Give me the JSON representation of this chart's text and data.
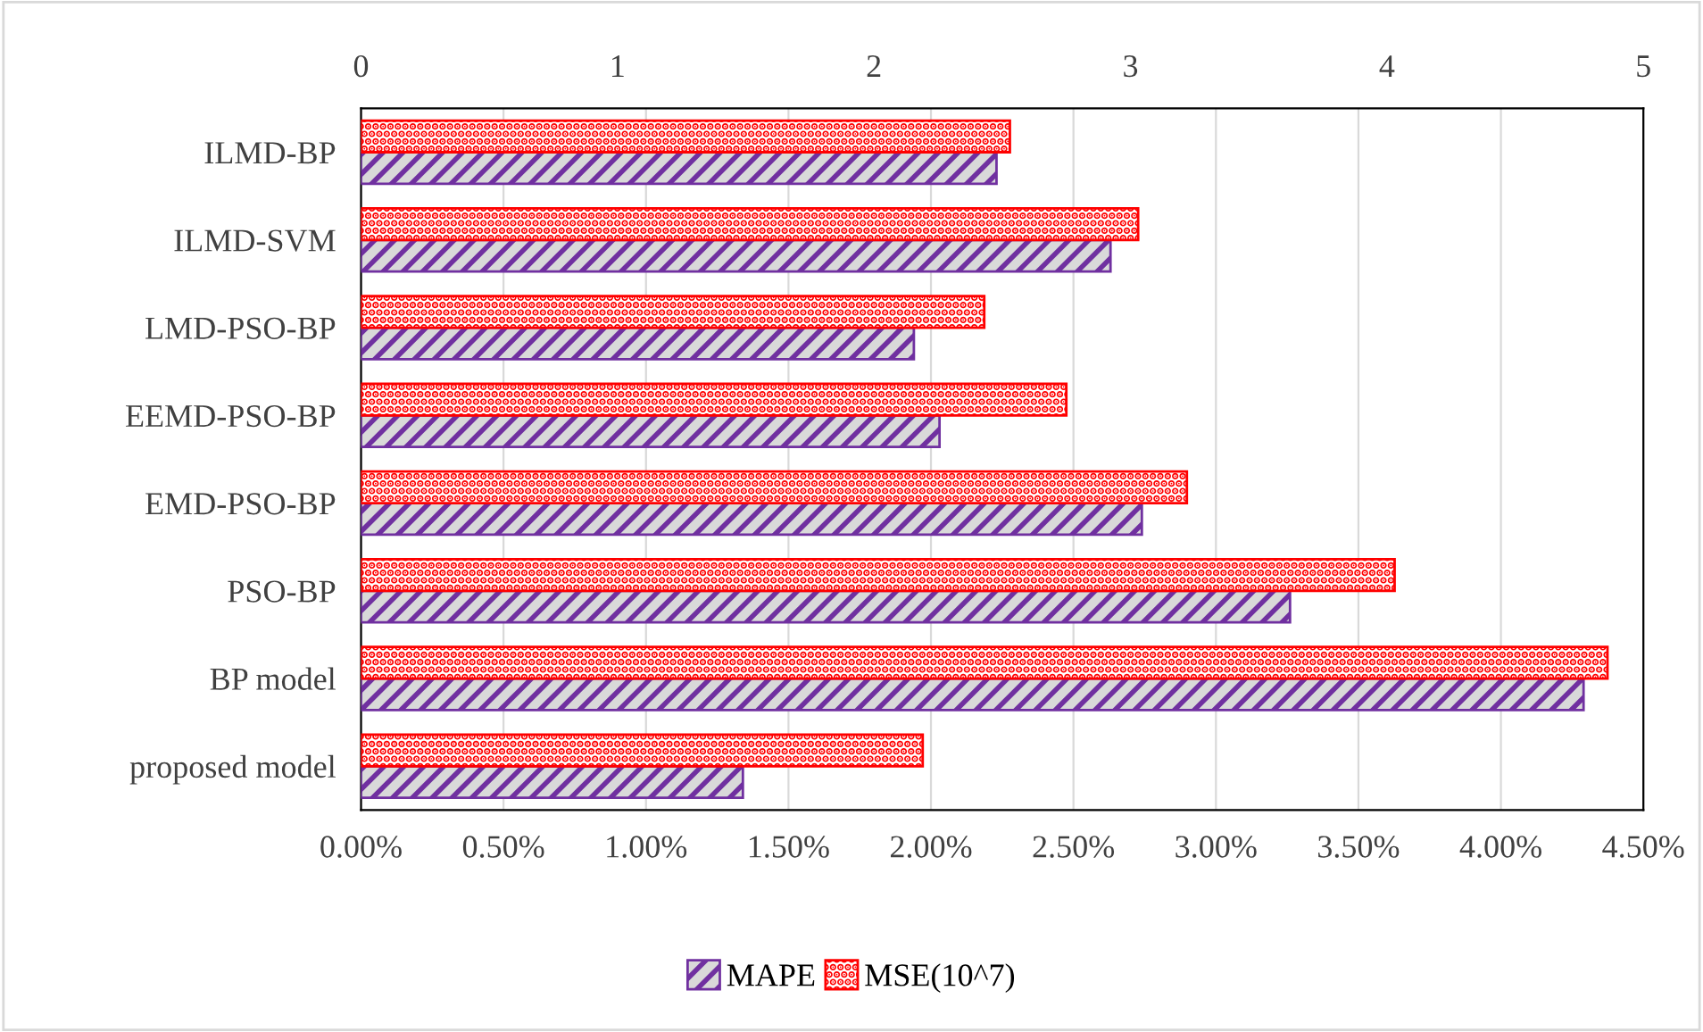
{
  "chart_data": {
    "type": "bar",
    "orientation": "horizontal",
    "categories": [
      "ILMD-BP",
      "ILMD-SVM",
      "LMD-PSO-BP",
      "EEMD-PSO-BP",
      "EMD-PSO-BP",
      "PSO-BP",
      "BP model",
      "proposed model"
    ],
    "series": [
      {
        "name": "MAPE",
        "color": "#7030a0",
        "values": [
          2.23,
          2.63,
          1.94,
          2.03,
          2.74,
          3.26,
          4.29,
          1.34
        ]
      },
      {
        "name": "MSE(10^7)",
        "color": "#ff0000",
        "axis": "x2",
        "values": [
          2.53,
          3.03,
          2.43,
          2.75,
          3.22,
          4.03,
          4.86,
          2.19
        ]
      }
    ],
    "xlim": [
      0,
      4.5
    ],
    "xticks": [
      {
        "value": 0,
        "label": "0.00%"
      },
      {
        "value": 0.5,
        "label": "0.50%"
      },
      {
        "value": 1,
        "label": "1.00%"
      },
      {
        "value": 1.5,
        "label": "1.50%"
      },
      {
        "value": 2,
        "label": "2.00%"
      },
      {
        "value": 2.5,
        "label": "2.50%"
      },
      {
        "value": 3,
        "label": "3.00%"
      },
      {
        "value": 3.5,
        "label": "3.50%"
      },
      {
        "value": 4,
        "label": "4.00%"
      },
      {
        "value": 4.5,
        "label": "4.50%"
      }
    ],
    "x2lim": [
      0,
      5
    ],
    "x2ticks": [
      0,
      1,
      2,
      3,
      4,
      5
    ],
    "grid": "x",
    "legend": "bottom"
  }
}
